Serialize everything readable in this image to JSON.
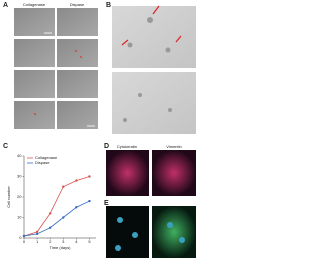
{
  "panels": {
    "a": "A",
    "b": "B",
    "c": "C",
    "d": "D",
    "e": "E"
  },
  "panel_a": {
    "columns": [
      "Collagenase",
      "Dispase"
    ]
  },
  "panel_d": {
    "columns": [
      "Cytokeratin",
      "Vimentin"
    ]
  },
  "chart_data": {
    "type": "line",
    "x_label": "Time (days)",
    "y_label": "Cell number",
    "x": [
      0,
      1,
      2,
      3,
      4,
      5
    ],
    "xlim": [
      0,
      5.5
    ],
    "xticks": [
      0,
      1,
      2,
      3,
      4,
      5
    ],
    "ylim": [
      0,
      40
    ],
    "yticks": [
      0,
      10,
      20,
      30,
      40
    ],
    "legend": "top-left",
    "series": [
      {
        "name": "Collagenase",
        "color": "#d9534f",
        "values": [
          1,
          3,
          12,
          25,
          28,
          30
        ]
      },
      {
        "name": "Dispase",
        "color": "#3a6fc4",
        "values": [
          1,
          2,
          5,
          10,
          15,
          18
        ]
      }
    ]
  }
}
